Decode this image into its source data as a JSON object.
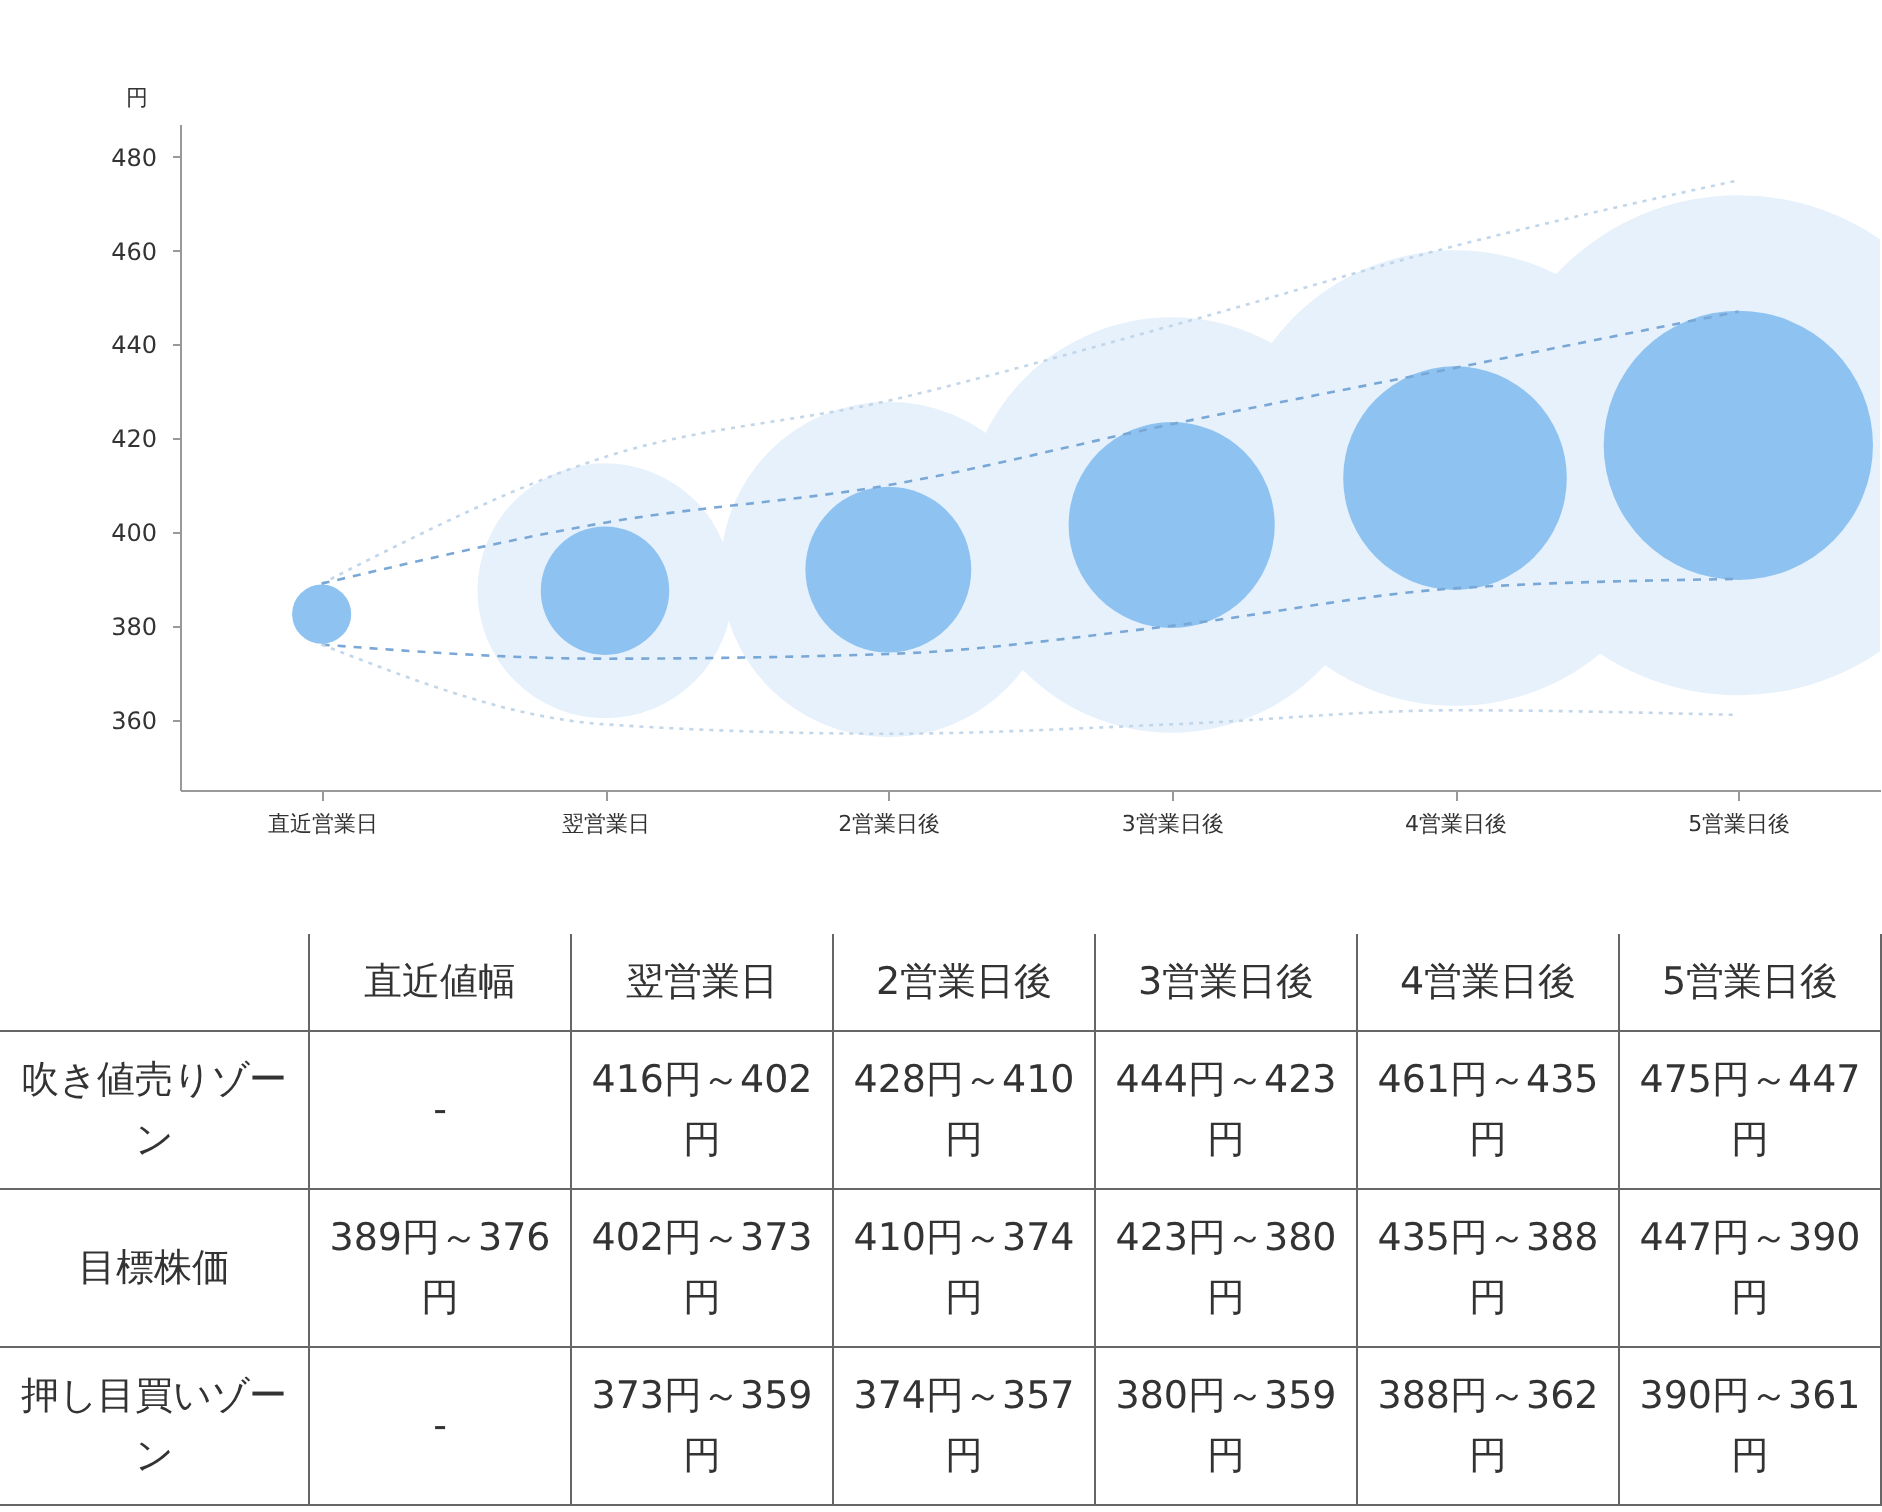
{
  "chart_data": {
    "type": "bubble",
    "categories": [
      "直近営業日",
      "翌営業日",
      "2営業日後",
      "3営業日後",
      "4営業日後",
      "5営業日後"
    ],
    "ylabel": "円",
    "ylim": [
      345,
      487
    ],
    "yticks": [
      360,
      380,
      400,
      420,
      440,
      460,
      480
    ],
    "series": [
      {
        "type": "bubble",
        "color": "#e6f1fc",
        "values": [
          null,
          387.5,
          392,
          401.5,
          411.5,
          418.5
        ],
        "sizes": [
          null,
          0.26,
          0.45,
          0.69,
          0.83,
          1
        ]
      },
      {
        "type": "bubble",
        "color": "#8ec2f1",
        "values": [
          382.5,
          387.5,
          392,
          401.5,
          411.5,
          418.5
        ],
        "sizes": [
          0.014,
          0.066,
          0.11,
          0.17,
          0.2,
          0.29
        ]
      },
      {
        "type": "line",
        "line_style": "dotted",
        "color": "#c2d6ea",
        "values": [
          389,
          416,
          428,
          444,
          461,
          475
        ]
      },
      {
        "type": "line",
        "line_style": "dashed",
        "color": "#7aa8d6",
        "values": [
          389,
          402,
          410,
          423,
          435,
          447
        ]
      },
      {
        "type": "line",
        "line_style": "dashed",
        "color": "#7aa8d6",
        "values": [
          376,
          373,
          374,
          380,
          388,
          390
        ]
      },
      {
        "type": "line",
        "line_style": "dotted",
        "color": "#c2d6ea",
        "values": [
          376,
          359,
          357,
          359,
          362,
          361
        ]
      }
    ],
    "annotations": [
      "直近値幅",
      "吹き値売りゾーン",
      "-",
      "416円～402円",
      "428円～410円",
      "444円～423円",
      "461円～435円",
      "475円～447円",
      "目標株価",
      "389円～376円",
      "402円～373円",
      "410円～374円",
      "423円～380円",
      "435円～388円",
      "447円～390円",
      "押し目買いゾーン",
      "-",
      "373円～359円",
      "374円～357円",
      "380円～359円",
      "388円～362円",
      "390円～361円"
    ]
  }
}
